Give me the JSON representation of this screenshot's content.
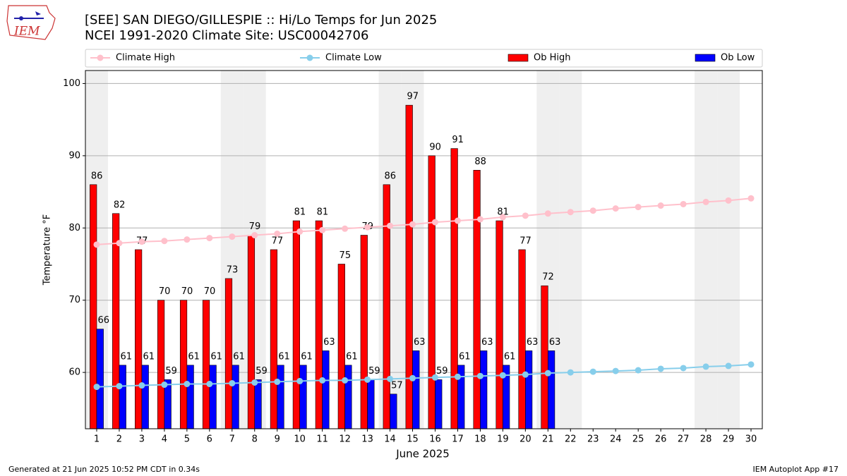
{
  "chart_data": {
    "type": "bar",
    "title": "[SEE] SAN DIEGO/GILLESPIE :: Hi/Lo Temps for Jun 2025",
    "subtitle": "NCEI 1991-2020 Climate Site: USC00042706",
    "x_label": "June 2025",
    "y_label": "Temperature °F",
    "categories": [
      "1",
      "2",
      "3",
      "4",
      "5",
      "6",
      "7",
      "8",
      "9",
      "10",
      "11",
      "12",
      "13",
      "14",
      "15",
      "16",
      "17",
      "18",
      "19",
      "20",
      "21",
      "22",
      "23",
      "24",
      "25",
      "26",
      "27",
      "28",
      "29",
      "30"
    ],
    "shaded": [
      "1",
      "7",
      "8",
      "14",
      "15",
      "21",
      "22",
      "28",
      "29"
    ],
    "ylim": [
      52.2,
      101.8
    ],
    "yticks": [
      60,
      70,
      80,
      90,
      100
    ],
    "grid": true,
    "legend": "top",
    "series": [
      {
        "name": "Climate High",
        "type": "line",
        "color": "#ffc0cb",
        "values": [
          77.7,
          77.9,
          78.1,
          78.2,
          78.4,
          78.6,
          78.8,
          79.0,
          79.2,
          79.5,
          79.7,
          79.9,
          80.1,
          80.3,
          80.5,
          80.8,
          81.0,
          81.2,
          81.5,
          81.7,
          82.0,
          82.2,
          82.4,
          82.7,
          82.9,
          83.1,
          83.3,
          83.6,
          83.8,
          84.1
        ]
      },
      {
        "name": "Climate Low",
        "type": "line",
        "color": "#87ceeb",
        "values": [
          58.0,
          58.1,
          58.2,
          58.3,
          58.4,
          58.4,
          58.5,
          58.6,
          58.7,
          58.8,
          58.9,
          58.9,
          59.0,
          59.1,
          59.2,
          59.3,
          59.4,
          59.5,
          59.6,
          59.7,
          59.9,
          60.0,
          60.1,
          60.2,
          60.3,
          60.5,
          60.6,
          60.8,
          60.9,
          61.1
        ]
      },
      {
        "name": "Ob High",
        "type": "bar",
        "color": "#ff0000",
        "values": [
          86,
          82,
          77,
          70,
          70,
          70,
          73,
          79,
          77,
          81,
          81,
          75,
          79,
          86,
          97,
          90,
          91,
          88,
          81,
          77,
          72,
          null,
          null,
          null,
          null,
          null,
          null,
          null,
          null,
          null
        ]
      },
      {
        "name": "Ob Low",
        "type": "bar",
        "color": "#0000ff",
        "values": [
          66,
          61,
          61,
          59,
          61,
          61,
          61,
          59,
          61,
          61,
          63,
          61,
          59,
          57,
          63,
          59,
          61,
          63,
          61,
          63,
          63,
          null,
          null,
          null,
          null,
          null,
          null,
          null,
          null,
          null
        ]
      }
    ],
    "footer_left": "Generated at 21 Jun 2025 10:52 PM CDT in 0.34s",
    "footer_right": "IEM Autoplot App #17"
  }
}
